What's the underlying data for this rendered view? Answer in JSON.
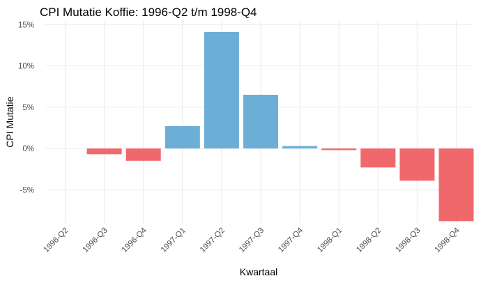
{
  "chart_data": {
    "type": "bar",
    "title": "CPI Mutatie Koffie: 1996-Q2 t/m 1998-Q4",
    "xlabel": "Kwartaal",
    "ylabel": "CPI Mutatie",
    "categories": [
      "1996-Q2",
      "1996-Q3",
      "1996-Q4",
      "1997-Q1",
      "1997-Q2",
      "1997-Q3",
      "1997-Q4",
      "1998-Q1",
      "1998-Q2",
      "1998-Q3",
      "1998-Q4"
    ],
    "values": [
      0.0,
      -0.7,
      -1.5,
      2.7,
      14.1,
      6.5,
      0.3,
      -0.2,
      -2.3,
      -3.9,
      -8.8
    ],
    "ylim": [
      -10,
      15
    ],
    "yticks": [
      -5,
      0,
      5,
      10,
      15
    ],
    "ytick_labels": [
      "-5%",
      "0%",
      "5%",
      "10%",
      "15%"
    ],
    "grid": true,
    "legend": "none",
    "colors": {
      "positive": "#6baed6",
      "negative": "#f0686b"
    }
  }
}
